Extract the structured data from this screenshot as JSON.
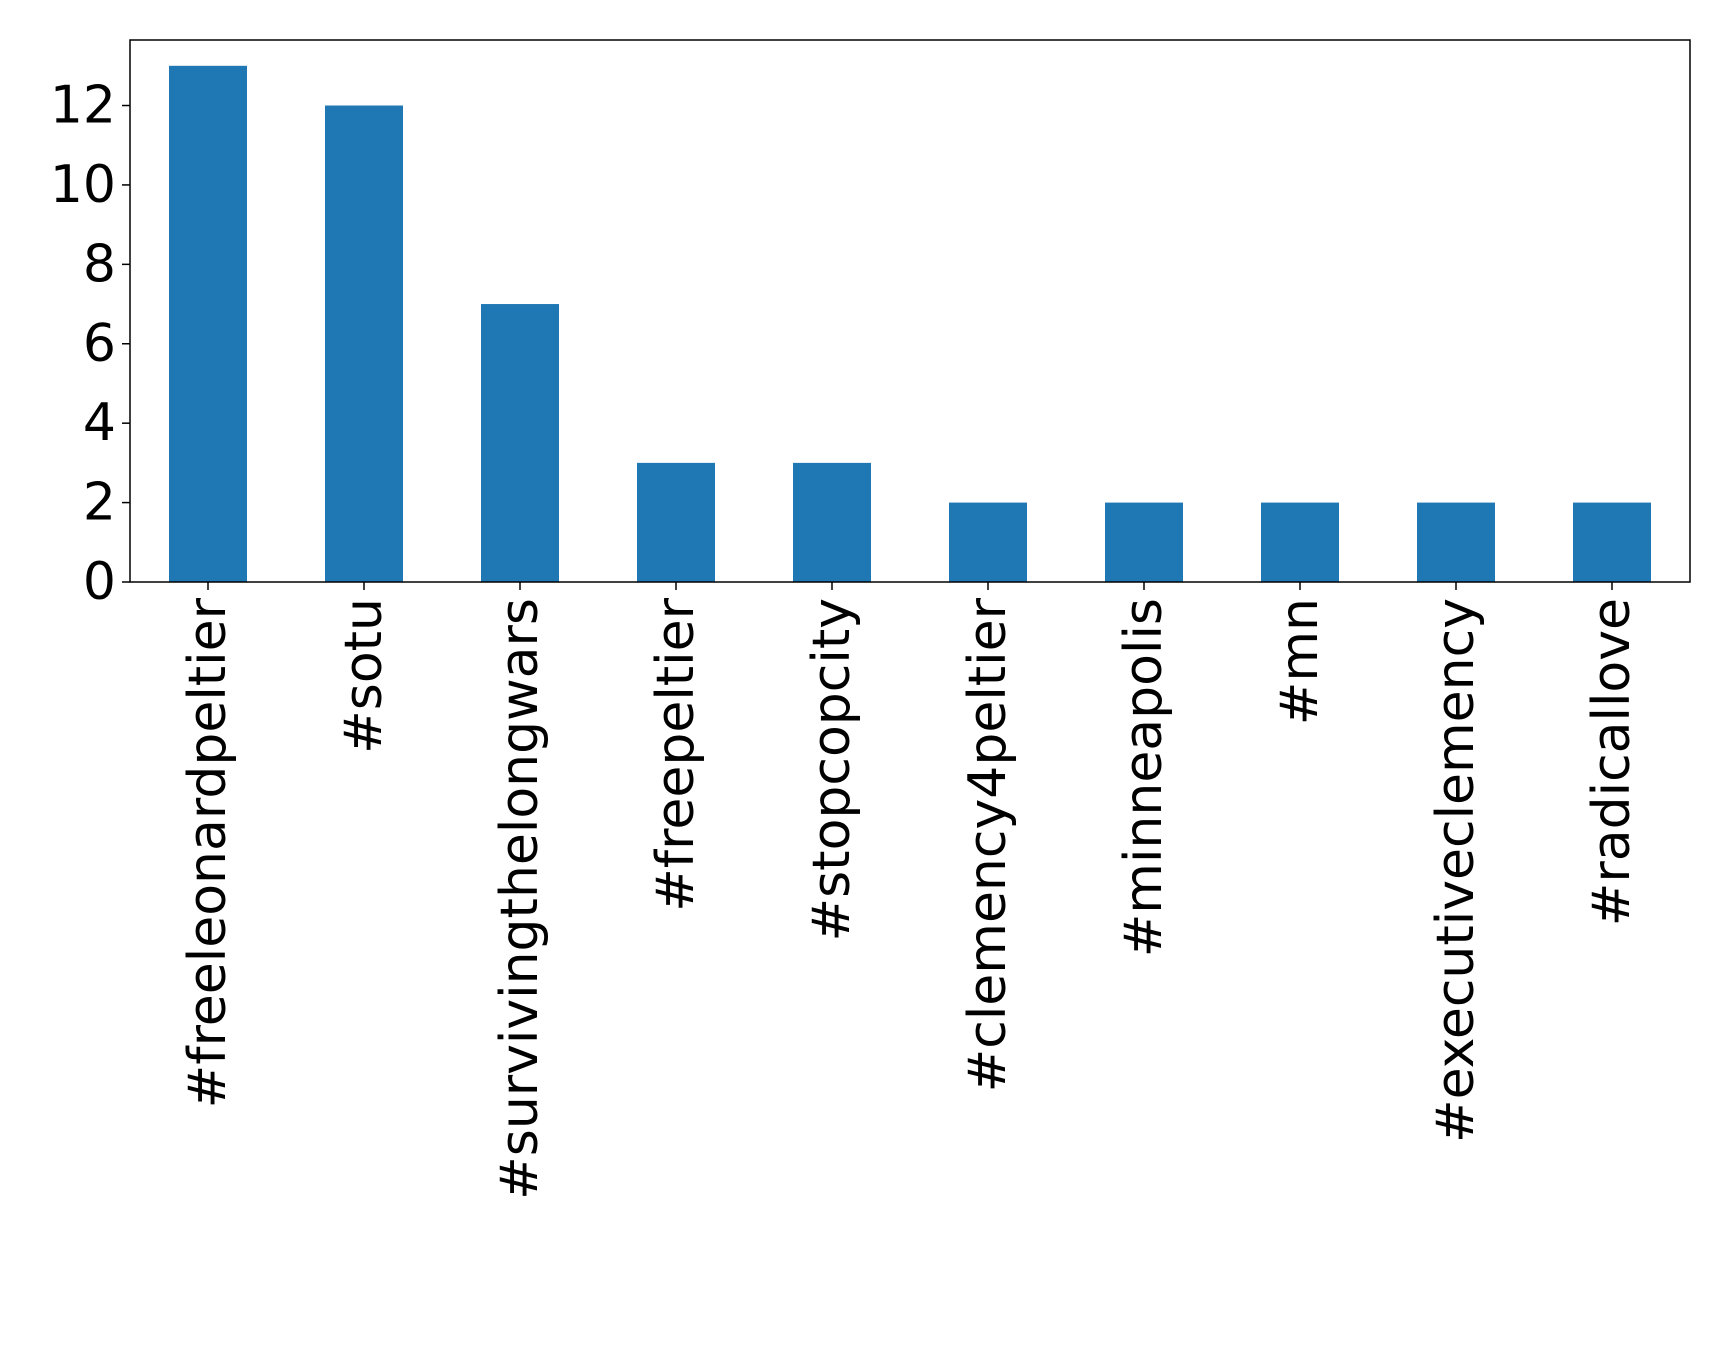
{
  "chart_data": {
    "type": "bar",
    "title": "",
    "xlabel": "",
    "ylabel": "",
    "categories": [
      "#freeleonardpeltier",
      "#sotu",
      "#survivingthelongwars",
      "#freepeltier",
      "#stopcopcity",
      "#clemency4peltier",
      "#minneapolis",
      "#mn",
      "#executiveclemency",
      "#radicallove"
    ],
    "values": [
      13,
      12,
      7,
      3,
      3,
      2,
      2,
      2,
      2,
      2
    ],
    "ylim": [
      0,
      13.65
    ],
    "yticks": [
      "0",
      "2",
      "4",
      "6",
      "8",
      "10",
      "12"
    ],
    "bar_color": "#1f77b4",
    "grid": false,
    "legend": "none"
  }
}
